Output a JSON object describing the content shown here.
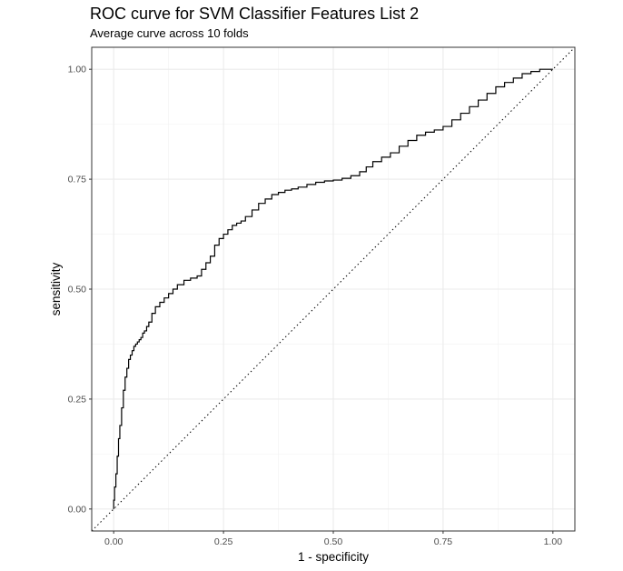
{
  "chart_data": {
    "type": "line",
    "title": "ROC curve for SVM Classifier Features List 2",
    "subtitle": "Average curve across 10 folds",
    "xlabel": "1 - specificity",
    "ylabel": "sensitivity",
    "xlim": [
      -0.05,
      1.05
    ],
    "ylim": [
      -0.05,
      1.05
    ],
    "x_ticks": [
      "0.00",
      "0.25",
      "0.50",
      "0.75",
      "1.00"
    ],
    "y_ticks": [
      "0.00",
      "0.25",
      "0.50",
      "0.75",
      "1.00"
    ],
    "grid": true,
    "reference_line": {
      "style": "dotted",
      "x": [
        -0.05,
        1.05
      ],
      "y": [
        -0.05,
        1.05
      ]
    },
    "series": [
      {
        "style": "step",
        "x": [
          0.0,
          0.002,
          0.005,
          0.008,
          0.011,
          0.014,
          0.018,
          0.022,
          0.026,
          0.03,
          0.034,
          0.038,
          0.042,
          0.046,
          0.05,
          0.054,
          0.058,
          0.062,
          0.066,
          0.07,
          0.075,
          0.08,
          0.087,
          0.095,
          0.105,
          0.115,
          0.125,
          0.135,
          0.145,
          0.16,
          0.175,
          0.19,
          0.2,
          0.21,
          0.22,
          0.23,
          0.24,
          0.25,
          0.26,
          0.27,
          0.28,
          0.29,
          0.3,
          0.315,
          0.33,
          0.345,
          0.36,
          0.375,
          0.39,
          0.405,
          0.42,
          0.44,
          0.46,
          0.48,
          0.5,
          0.52,
          0.54,
          0.56,
          0.575,
          0.59,
          0.61,
          0.63,
          0.65,
          0.67,
          0.69,
          0.71,
          0.73,
          0.75,
          0.77,
          0.79,
          0.81,
          0.83,
          0.85,
          0.87,
          0.89,
          0.91,
          0.93,
          0.95,
          0.97,
          0.99,
          1.0
        ],
        "y": [
          0.0,
          0.02,
          0.05,
          0.08,
          0.12,
          0.16,
          0.19,
          0.23,
          0.27,
          0.3,
          0.32,
          0.34,
          0.35,
          0.36,
          0.37,
          0.375,
          0.38,
          0.385,
          0.39,
          0.4,
          0.405,
          0.415,
          0.425,
          0.445,
          0.46,
          0.47,
          0.48,
          0.49,
          0.5,
          0.51,
          0.52,
          0.525,
          0.53,
          0.545,
          0.56,
          0.575,
          0.6,
          0.615,
          0.625,
          0.635,
          0.645,
          0.65,
          0.655,
          0.665,
          0.68,
          0.695,
          0.705,
          0.715,
          0.72,
          0.725,
          0.728,
          0.732,
          0.738,
          0.743,
          0.746,
          0.748,
          0.752,
          0.758,
          0.767,
          0.778,
          0.79,
          0.8,
          0.81,
          0.825,
          0.838,
          0.85,
          0.857,
          0.862,
          0.87,
          0.885,
          0.9,
          0.915,
          0.93,
          0.945,
          0.96,
          0.97,
          0.98,
          0.99,
          0.995,
          1.0,
          1.0
        ]
      }
    ]
  }
}
